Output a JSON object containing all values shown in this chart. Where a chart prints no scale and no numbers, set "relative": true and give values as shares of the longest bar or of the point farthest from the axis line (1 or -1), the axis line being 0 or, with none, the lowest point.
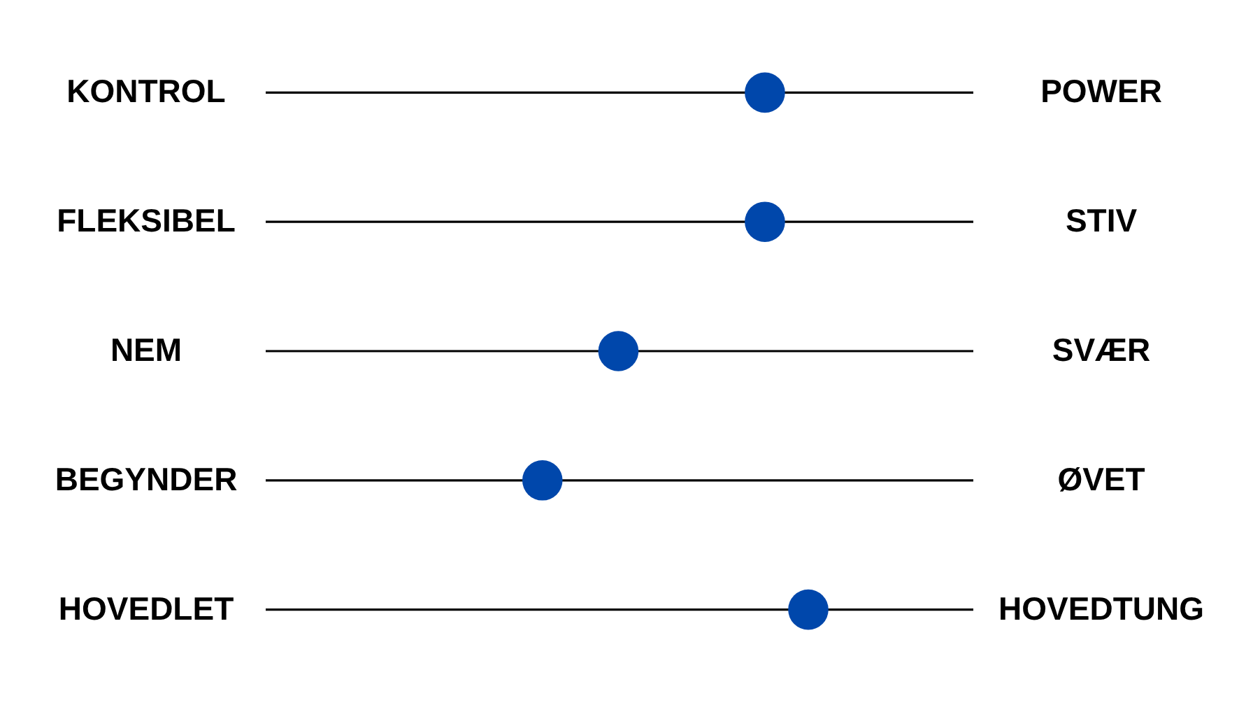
{
  "chart_data": {
    "type": "scatter",
    "categories": [
      "KONTROL",
      "FLEKSIBEL",
      "NEM",
      "BEGYNDER",
      "HOVEDLET"
    ],
    "y2_categories": [
      "POWER",
      "STIV",
      "SVÆR",
      "ØVET",
      "HOVEDTUNG"
    ],
    "relative": true,
    "orientation": "horizontal",
    "tick_labels": "y",
    "grid": "y",
    "marker": "circle",
    "series": [
      {
        "color": "#0047ab",
        "values": [
          0.92,
          0.92,
          0.65,
          0.51,
          1
        ]
      }
    ]
  }
}
